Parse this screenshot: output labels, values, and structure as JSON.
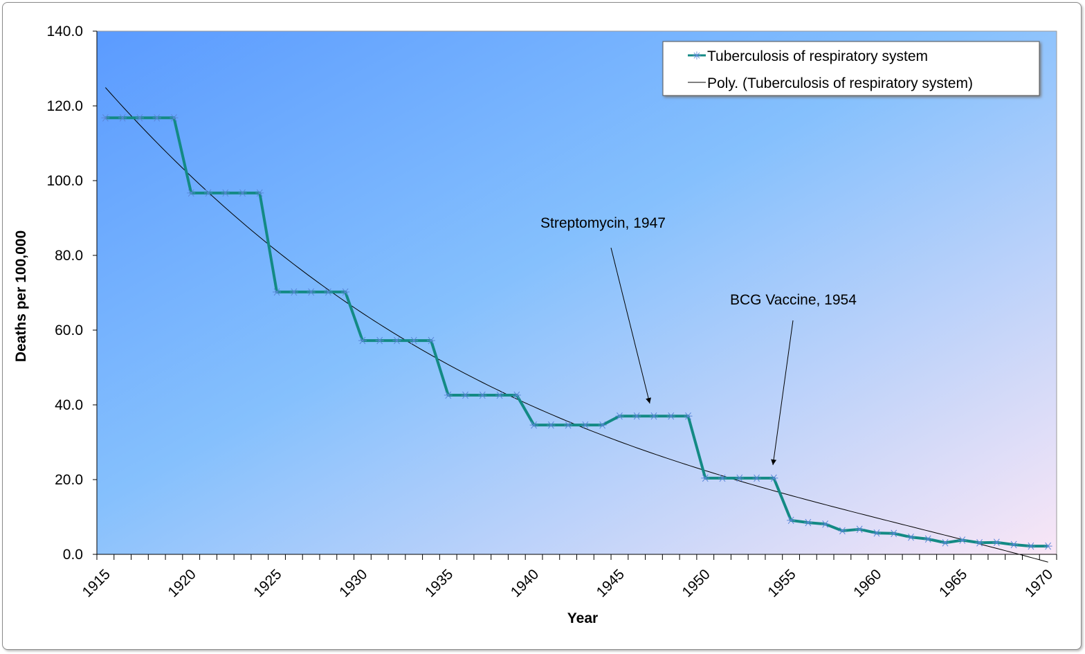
{
  "chart_data": {
    "type": "line",
    "xlabel": "Year",
    "ylabel": "Deaths per 100,000",
    "ylim": [
      0,
      140
    ],
    "yticks": [
      "0.0",
      "20.0",
      "40.0",
      "60.0",
      "80.0",
      "100.0",
      "120.0",
      "140.0"
    ],
    "xtick_labels": [
      "1915",
      "1920",
      "1925",
      "1930",
      "1935",
      "1940",
      "1945",
      "1950",
      "1955",
      "1960",
      "1965",
      "1970"
    ],
    "x": [
      1915,
      1916,
      1917,
      1918,
      1919,
      1920,
      1921,
      1922,
      1923,
      1924,
      1925,
      1926,
      1927,
      1928,
      1929,
      1930,
      1931,
      1932,
      1933,
      1934,
      1935,
      1936,
      1937,
      1938,
      1939,
      1940,
      1941,
      1942,
      1943,
      1944,
      1945,
      1946,
      1947,
      1948,
      1949,
      1950,
      1951,
      1952,
      1953,
      1954,
      1955,
      1956,
      1957,
      1958,
      1959,
      1960,
      1961,
      1962,
      1963,
      1964,
      1965,
      1966,
      1967,
      1968,
      1969,
      1970
    ],
    "series": [
      {
        "name": "Tuberculosis of respiratory system",
        "color": "#138a84",
        "marker": "asterisk",
        "values": [
          116.8,
          116.8,
          116.8,
          116.8,
          116.8,
          96.7,
          96.7,
          96.7,
          96.7,
          96.7,
          70.2,
          70.2,
          70.2,
          70.2,
          70.2,
          57.2,
          57.2,
          57.2,
          57.2,
          57.2,
          42.6,
          42.6,
          42.6,
          42.6,
          42.6,
          34.6,
          34.6,
          34.6,
          34.6,
          34.6,
          37.0,
          37.0,
          37.0,
          37.0,
          37.0,
          20.4,
          20.4,
          20.4,
          20.4,
          20.4,
          9.1,
          8.5,
          8.1,
          6.3,
          6.7,
          5.7,
          5.6,
          4.6,
          4.1,
          3.1,
          3.8,
          3.1,
          3.2,
          2.6,
          2.2,
          2.2
        ]
      },
      {
        "name": "Poly. (Tuberculosis of respiratory system)",
        "color": "#000000",
        "trendline": "polynomial"
      }
    ],
    "annotations": [
      {
        "text": "Streptomycin, 1947",
        "x": 1947
      },
      {
        "text": "BCG Vaccine, 1954",
        "x": 1954
      }
    ],
    "legend": "top-right",
    "background": [
      "#5b9bff",
      "#f9e6f6"
    ]
  }
}
